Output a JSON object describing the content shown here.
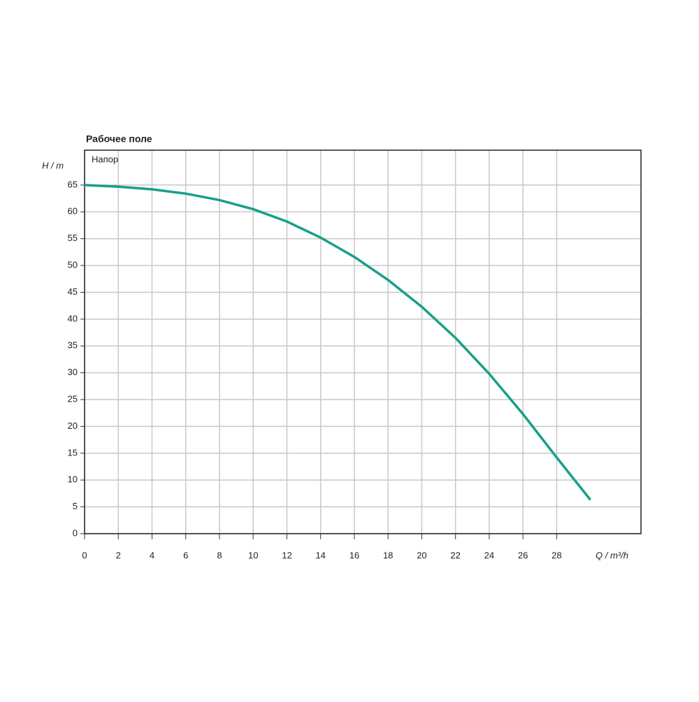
{
  "chart_data": {
    "type": "line",
    "title": "Рабочее поле",
    "x_label": "Q / m³/h",
    "y_label": "H / m",
    "x": [
      0,
      2,
      4,
      6,
      8,
      10,
      12,
      14,
      16,
      18,
      20,
      22,
      24,
      26,
      28,
      30
    ],
    "series": [
      {
        "name": "Напор",
        "color": "#17a08a",
        "values": [
          65,
          64.7,
          64.2,
          63.4,
          62.2,
          60.5,
          58.2,
          55.2,
          51.6,
          47.3,
          42.3,
          36.5,
          29.8,
          22.3,
          14.2,
          6.3
        ]
      }
    ],
    "xlim": [
      0,
      33
    ],
    "xticks": [
      0,
      2,
      4,
      6,
      8,
      10,
      12,
      14,
      16,
      18,
      20,
      22,
      24,
      26,
      28
    ],
    "ylim": [
      0,
      71.5
    ],
    "yticks": [
      0,
      5,
      10,
      15,
      20,
      25,
      30,
      35,
      40,
      45,
      50,
      55,
      60,
      65
    ],
    "grid": true
  }
}
